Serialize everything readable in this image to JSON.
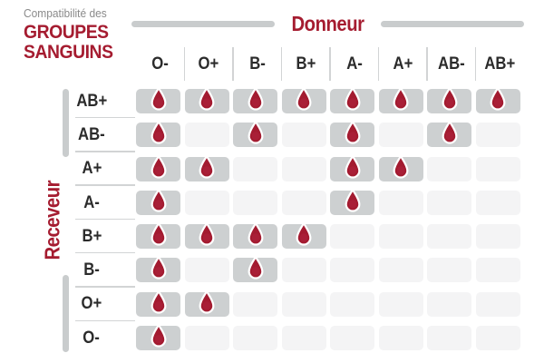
{
  "title": {
    "prefix": "Compatibilité des",
    "line1": "GROUPES",
    "line2": "SANGUINS"
  },
  "axes": {
    "donor_label": "Donneur",
    "receiver_label": "Receveur"
  },
  "donors": [
    "O-",
    "O+",
    "B-",
    "B+",
    "A-",
    "A+",
    "AB-",
    "AB+"
  ],
  "receivers": [
    "AB+",
    "AB-",
    "A+",
    "A-",
    "B+",
    "B-",
    "O+",
    "O-"
  ],
  "matrix": [
    [
      1,
      1,
      1,
      1,
      1,
      1,
      1,
      1
    ],
    [
      1,
      0,
      1,
      0,
      1,
      0,
      1,
      0
    ],
    [
      1,
      1,
      0,
      0,
      1,
      1,
      0,
      0
    ],
    [
      1,
      0,
      0,
      0,
      1,
      0,
      0,
      0
    ],
    [
      1,
      1,
      1,
      1,
      0,
      0,
      0,
      0
    ],
    [
      1,
      0,
      1,
      0,
      0,
      0,
      0,
      0
    ],
    [
      1,
      1,
      0,
      0,
      0,
      0,
      0,
      0
    ],
    [
      1,
      0,
      0,
      0,
      0,
      0,
      0,
      0
    ]
  ],
  "icons": {
    "compatible": "blood-drop-icon"
  },
  "colors": {
    "accent_red": "#a51c30",
    "drop_red": "#a31b30",
    "cell_filled": "#cdd0d1",
    "cell_empty": "#f4f4f5",
    "axis_line_gray": "#c9cccd",
    "separator_gray": "#d2d4d5",
    "label_dark": "#2b2b2b",
    "title_gray": "#8a8a8a"
  },
  "chart_data": {
    "type": "heatmap",
    "title": "Compatibilité des GROUPES SANGUINS",
    "x_axis_label": "Donneur",
    "y_axis_label": "Receveur",
    "columns": [
      "O-",
      "O+",
      "B-",
      "B+",
      "A-",
      "A+",
      "AB-",
      "AB+"
    ],
    "rows": [
      "AB+",
      "AB-",
      "A+",
      "A-",
      "B+",
      "B-",
      "O+",
      "O-"
    ],
    "values": [
      [
        1,
        1,
        1,
        1,
        1,
        1,
        1,
        1
      ],
      [
        1,
        0,
        1,
        0,
        1,
        0,
        1,
        0
      ],
      [
        1,
        1,
        0,
        0,
        1,
        1,
        0,
        0
      ],
      [
        1,
        0,
        0,
        0,
        1,
        0,
        0,
        0
      ],
      [
        1,
        1,
        1,
        1,
        0,
        0,
        0,
        0
      ],
      [
        1,
        0,
        1,
        0,
        0,
        0,
        0,
        0
      ],
      [
        1,
        1,
        0,
        0,
        0,
        0,
        0,
        0
      ],
      [
        1,
        0,
        0,
        0,
        0,
        0,
        0,
        0
      ]
    ],
    "cell_marker": "blood drop = compatible",
    "legend_position": "none",
    "grid": false
  }
}
